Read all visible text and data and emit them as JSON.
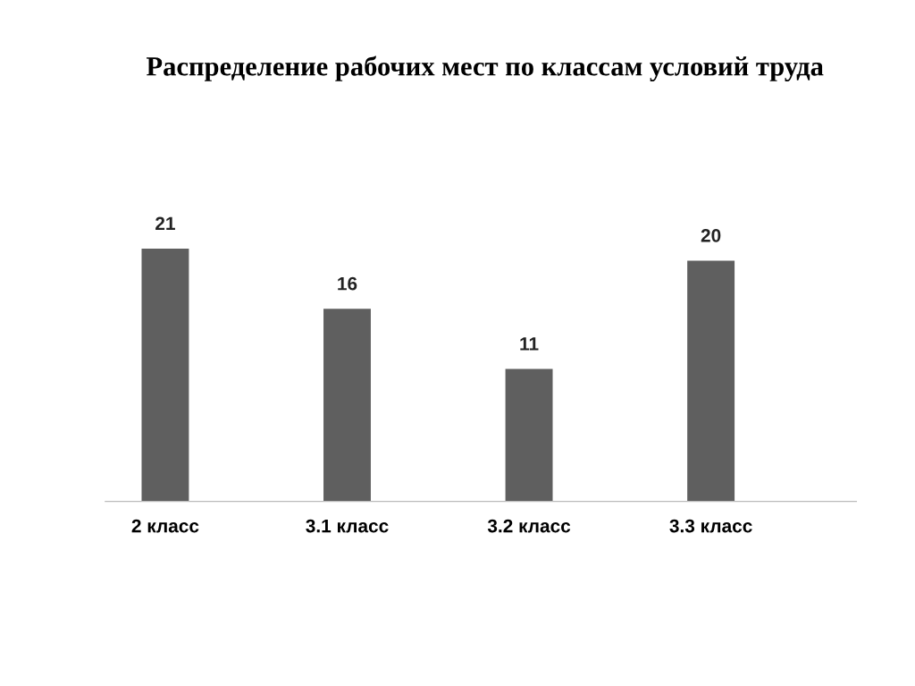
{
  "chart_data": {
    "type": "bar",
    "title": "Распределение рабочих мест по классам условий труда",
    "categories": [
      "2 класс",
      "3.1 класс",
      "3.2 класс",
      "3.3 класс"
    ],
    "values": [
      21,
      16,
      11,
      20
    ],
    "color": "#5f5f5f",
    "data_labels": true,
    "grid": false,
    "legend": false,
    "tick_labels": "x"
  }
}
